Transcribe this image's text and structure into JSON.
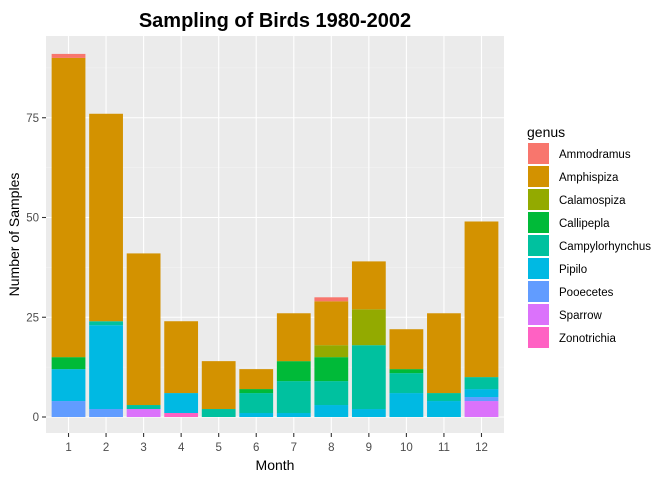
{
  "chart_data": {
    "type": "bar",
    "stacked": true,
    "title": "Sampling of Birds 1980-2002",
    "xlabel": "Month",
    "ylabel": "Number of Samples",
    "categories": [
      "1",
      "2",
      "3",
      "4",
      "5",
      "6",
      "7",
      "8",
      "9",
      "10",
      "11",
      "12"
    ],
    "y_ticks": [
      "0",
      "25",
      "50",
      "75"
    ],
    "y_tick_values": [
      0,
      25,
      50,
      75
    ],
    "ylim": [
      0,
      95
    ],
    "grid": true,
    "legend_position": "right",
    "legend_title": "genus",
    "series": [
      {
        "name": "Zonotrichia",
        "color": "#FF61C3",
        "values": [
          0,
          0,
          0,
          1,
          0,
          0,
          0,
          0,
          0,
          0,
          0,
          0
        ]
      },
      {
        "name": "Sparrow",
        "color": "#DB72FB",
        "values": [
          0,
          0,
          2,
          0,
          0,
          0,
          0,
          0,
          0,
          0,
          0,
          4
        ]
      },
      {
        "name": "Pooecetes",
        "color": "#619CFF",
        "values": [
          4,
          2,
          0,
          0,
          0,
          0,
          0,
          0,
          0,
          0,
          0,
          1
        ]
      },
      {
        "name": "Pipilo",
        "color": "#00B9E3",
        "values": [
          8,
          21,
          0,
          5,
          0,
          1,
          1,
          3,
          2,
          6,
          4,
          2
        ]
      },
      {
        "name": "Campylorhynchus",
        "color": "#00C19F",
        "values": [
          0,
          1,
          1,
          0,
          2,
          5,
          8,
          6,
          16,
          5,
          2,
          3
        ]
      },
      {
        "name": "Callipepla",
        "color": "#00BA38",
        "values": [
          3,
          0,
          0,
          0,
          0,
          1,
          5,
          6,
          0,
          1,
          0,
          0
        ]
      },
      {
        "name": "Calamospiza",
        "color": "#93AA00",
        "values": [
          0,
          0,
          0,
          0,
          0,
          0,
          0,
          3,
          9,
          0,
          0,
          0
        ]
      },
      {
        "name": "Amphispiza",
        "color": "#D39200",
        "values": [
          75,
          52,
          38,
          18,
          12,
          5,
          12,
          11,
          12,
          10,
          20,
          39
        ]
      },
      {
        "name": "Ammodramus",
        "color": "#F8766D",
        "values": [
          1,
          0,
          0,
          0,
          0,
          0,
          0,
          1,
          0,
          0,
          0,
          0
        ]
      }
    ],
    "legend_order": [
      "Ammodramus",
      "Amphispiza",
      "Calamospiza",
      "Callipepla",
      "Campylorhynchus",
      "Pipilo",
      "Pooecetes",
      "Sparrow",
      "Zonotrichia"
    ]
  }
}
